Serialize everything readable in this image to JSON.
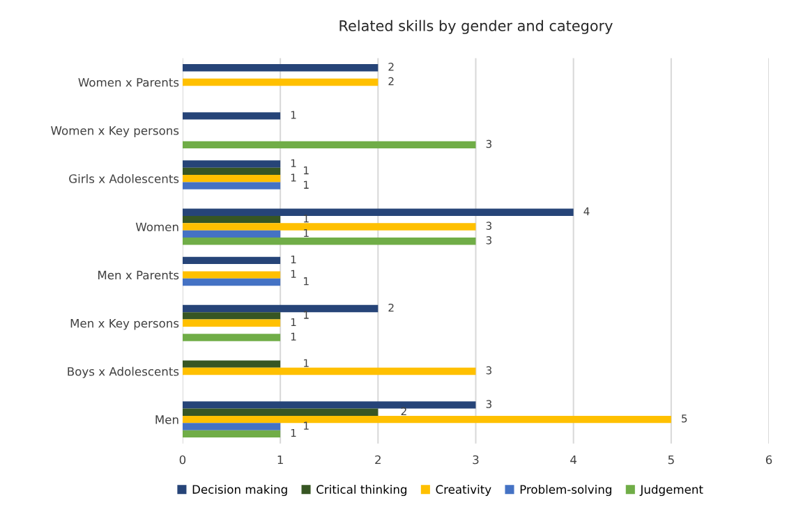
{
  "chart_data": {
    "type": "bar",
    "orientation": "horizontal",
    "title": "Related skills by gender and category",
    "categories": [
      "Women x Parents",
      "Women x Key persons",
      "Girls x Adolescents",
      "Women",
      "Men x Parents",
      "Men x Key persons",
      "Boys x Adolescents",
      "Men"
    ],
    "series": [
      {
        "name": "Decision making",
        "color": "#264478",
        "values": [
          2,
          1,
          1,
          4,
          1,
          2,
          null,
          3
        ]
      },
      {
        "name": "Critical thinking",
        "color": "#375623",
        "values": [
          null,
          null,
          1,
          1,
          null,
          1,
          1,
          2
        ]
      },
      {
        "name": "Creativity",
        "color": "#ffc000",
        "values": [
          2,
          null,
          1,
          3,
          1,
          1,
          3,
          5
        ]
      },
      {
        "name": "Problem-solving",
        "color": "#4472c4",
        "values": [
          null,
          null,
          1,
          1,
          1,
          null,
          null,
          1
        ]
      },
      {
        "name": "Judgement",
        "color": "#70ad47",
        "values": [
          null,
          3,
          null,
          3,
          null,
          1,
          null,
          1
        ]
      }
    ],
    "xlim": [
      0,
      6
    ],
    "xticks": [
      0,
      1,
      2,
      3,
      4,
      5,
      6
    ],
    "grid": "x",
    "legend": "bottom",
    "data_labels": true
  }
}
